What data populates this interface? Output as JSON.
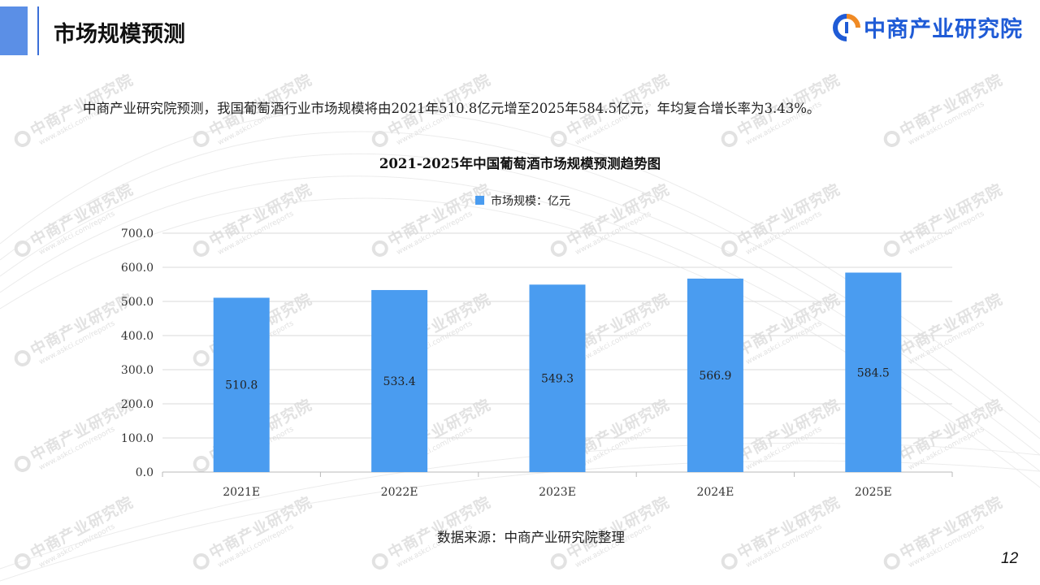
{
  "page_title": "市场规模预测",
  "logo": {
    "text": "中商产业研究院",
    "icon": "zhongshang-logo-icon",
    "brand_color": "#1f5bd6"
  },
  "summary": "中商产业研究院预测，我国葡萄酒行业市场规模将由2021年510.8亿元增至2025年584.5亿元，年均复合增长率为3.43%。",
  "watermark": {
    "text": "中商产业研究院",
    "url": "www.askci.com/reports"
  },
  "chart_data": {
    "type": "bar",
    "title": "2021-2025年中国葡萄酒市场规模预测趋势图",
    "categories": [
      "2021E",
      "2022E",
      "2023E",
      "2024E",
      "2025E"
    ],
    "series": [
      {
        "name": "市场规模：亿元",
        "values": [
          510.8,
          533.4,
          549.3,
          566.9,
          584.5
        ],
        "color": "#4a9cf0"
      }
    ],
    "data_labels": [
      "510.8",
      "533.4",
      "549.3",
      "566.9",
      "584.5"
    ],
    "ylim": [
      0,
      700
    ],
    "yticks": [
      "0.0",
      "100.0",
      "200.0",
      "300.0",
      "400.0",
      "500.0",
      "600.0",
      "700.0"
    ],
    "xlabel": "",
    "ylabel": "",
    "grid": true,
    "legend_position": "top-center"
  },
  "source": "数据来源：中商产业研究院整理",
  "page_number": "12"
}
